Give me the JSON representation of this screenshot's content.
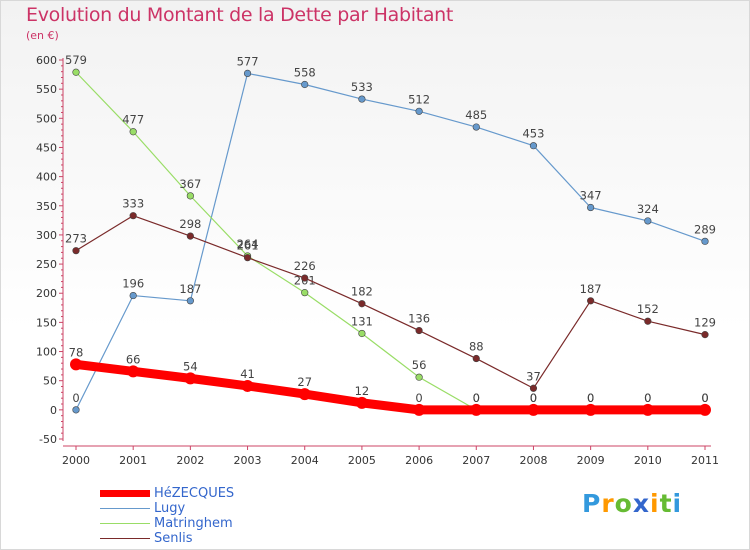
{
  "title": "Evolution du Montant de la Dette par Habitant",
  "subtitle": "(en €)",
  "chart_data": {
    "type": "line",
    "title": "Evolution du Montant de la Dette par Habitant",
    "subtitle": "(en €)",
    "xlabel": "",
    "ylabel": "",
    "categories": [
      "2000",
      "2001",
      "2002",
      "2003",
      "2004",
      "2005",
      "2006",
      "2007",
      "2008",
      "2009",
      "2010",
      "2011"
    ],
    "ylim": [
      -50,
      600
    ],
    "yticks": [
      -50,
      0,
      50,
      100,
      150,
      200,
      250,
      300,
      350,
      400,
      450,
      500,
      550,
      600
    ],
    "grid": false,
    "legend_position": "bottom-left",
    "series": [
      {
        "name": "HéZECQUES",
        "color": "#ff0000",
        "values": [
          78,
          66,
          54,
          41,
          27,
          12,
          0,
          0,
          0,
          0,
          0,
          0
        ]
      },
      {
        "name": "Lugy",
        "color": "#6699cc",
        "values": [
          0,
          196,
          187,
          577,
          558,
          533,
          512,
          485,
          453,
          347,
          324,
          289
        ]
      },
      {
        "name": "Matringhem",
        "color": "#99dd66",
        "values": [
          579,
          477,
          367,
          264,
          201,
          131,
          56,
          0,
          0,
          0,
          0,
          0
        ]
      },
      {
        "name": "Senlis",
        "color": "#7a2a2a",
        "values": [
          273,
          333,
          298,
          261,
          226,
          182,
          136,
          88,
          37,
          187,
          152,
          129
        ]
      }
    ]
  },
  "legend": {
    "items": [
      {
        "label": "HéZECQUES",
        "color": "#ff0000"
      },
      {
        "label": "Lugy",
        "color": "#6699cc"
      },
      {
        "label": "Matringhem",
        "color": "#99dd66"
      },
      {
        "label": "Senlis",
        "color": "#7a2a2a"
      }
    ]
  },
  "logo": {
    "letters": [
      "P",
      "r",
      "o",
      "x",
      "i",
      "t",
      "i"
    ],
    "colors": [
      "#3399dd",
      "#ff9900",
      "#66bb33",
      "#3366cc",
      "#ff9900",
      "#66bb33",
      "#3399dd"
    ]
  }
}
